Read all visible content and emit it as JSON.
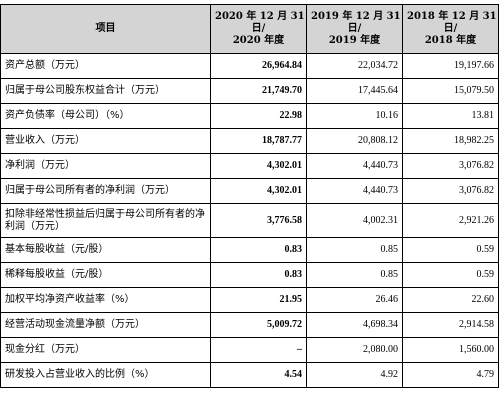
{
  "table": {
    "headers": [
      {
        "lines": [
          "项目"
        ]
      },
      {
        "lines": [
          "2020 年 12 月 31",
          "日/",
          "2020 年度"
        ]
      },
      {
        "lines": [
          "2019 年 12 月 31",
          "日/",
          "2019 年度"
        ]
      },
      {
        "lines": [
          "2018 年 12 月 31",
          "日/",
          "2018 年度"
        ]
      }
    ],
    "rows": [
      {
        "label": "资产总额（万元）",
        "v2020": "26,964.84",
        "v2019": "22,034.72",
        "v2018": "19,197.66"
      },
      {
        "label": "归属于母公司股东权益合计（万元）",
        "v2020": "21,749.70",
        "v2019": "17,445.64",
        "v2018": "15,079.50"
      },
      {
        "label": "资产负债率（母公司）（%）",
        "v2020": "22.98",
        "v2019": "10.16",
        "v2018": "13.81"
      },
      {
        "label": "营业收入（万元）",
        "v2020": "18,787.77",
        "v2019": "20,808.12",
        "v2018": "18,982.25"
      },
      {
        "label": "净利润（万元）",
        "v2020": "4,302.01",
        "v2019": "4,440.73",
        "v2018": "3,076.82"
      },
      {
        "label": "归属于母公司所有者的净利润（万元）",
        "v2020": "4,302.01",
        "v2019": "4,440.73",
        "v2018": "3,076.82"
      },
      {
        "label": "扣除非经常性损益后归属于母公司所有者的净利润（万元）",
        "v2020": "3,776.58",
        "v2019": "4,002.31",
        "v2018": "2,921.26"
      },
      {
        "label": "基本每股收益（元/股）",
        "v2020": "0.83",
        "v2019": "0.85",
        "v2018": "0.59"
      },
      {
        "label": "稀释每股收益（元/股）",
        "v2020": "0.83",
        "v2019": "0.85",
        "v2018": "0.59"
      },
      {
        "label": "加权平均净资产收益率（%）",
        "v2020": "21.95",
        "v2019": "26.46",
        "v2018": "22.60"
      },
      {
        "label": "经营活动现金流量净额（万元）",
        "v2020": "5,009.72",
        "v2019": "4,698.34",
        "v2018": "2,914.58"
      },
      {
        "label": "现金分红（万元）",
        "v2020": "–",
        "v2019": "2,080.00",
        "v2018": "1,560.00"
      },
      {
        "label": "研发投入占营业收入的比例（%）",
        "v2020": "4.54",
        "v2019": "4.92",
        "v2018": "4.79"
      }
    ]
  },
  "colors": {
    "header_bg": "#d4d4d4",
    "border": "#000000"
  }
}
